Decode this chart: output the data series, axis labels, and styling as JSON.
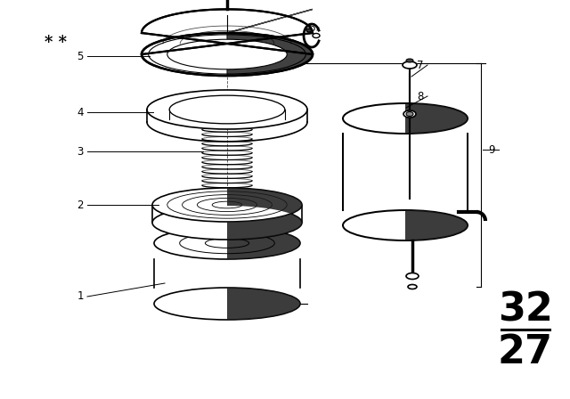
{
  "bg_color": "#ffffff",
  "line_color": "#000000",
  "fig_width": 6.4,
  "fig_height": 4.48,
  "dpi": 100,
  "title_num_top": "32",
  "title_num_bot": "27"
}
